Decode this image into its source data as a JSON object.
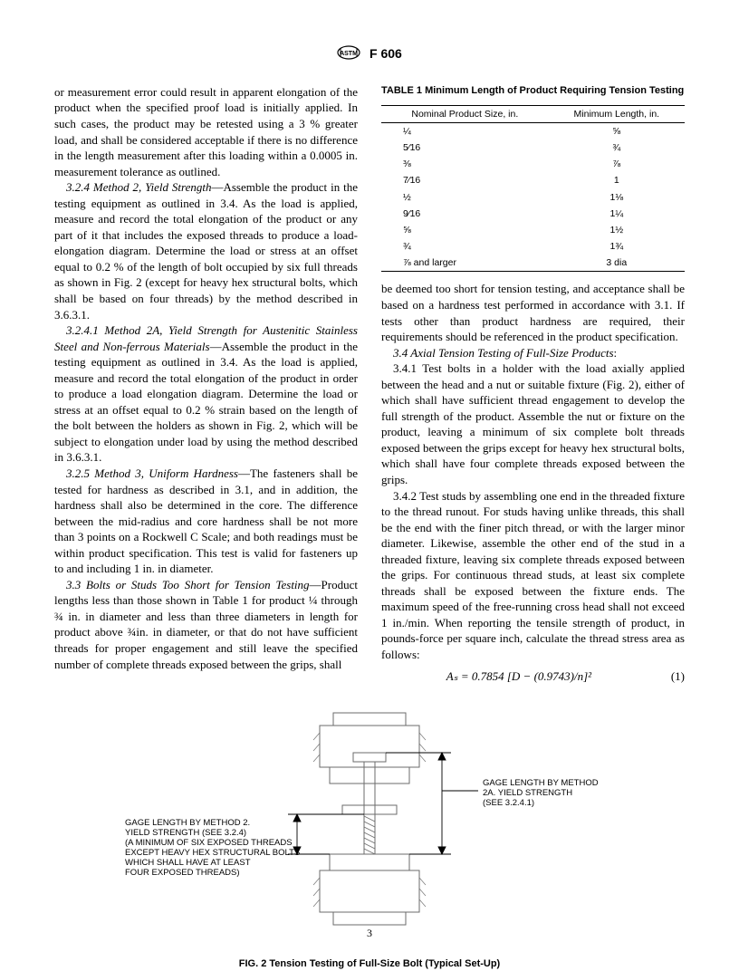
{
  "header": {
    "designation": "F 606"
  },
  "col1": {
    "p0": "or measurement error could result in apparent elongation of the product when the specified proof load is initially applied. In such cases, the product may be retested using a 3 % greater load, and shall be considered acceptable if there is no difference in the length measurement after this loading within a 0.0005 in. measurement tolerance as outlined.",
    "p1_lead": "3.2.4 Method 2, Yield Strength",
    "p1": "—Assemble the product in the testing equipment as outlined in 3.4. As the load is applied, measure and record the total elongation of the product or any part of it that includes the exposed threads to produce a load-elongation diagram. Determine the load or stress at an offset equal to 0.2 % of the length of bolt occupied by six full threads as shown in Fig. 2 (except for heavy hex structural bolts, which shall be based on four threads) by the method described in 3.6.3.1.",
    "p2_lead": "3.2.4.1 Method 2A, Yield Strength for Austenitic Stainless Steel and Non-ferrous Materials",
    "p2": "—Assemble the product in the testing equipment as outlined in 3.4. As the load is applied, measure and record the total elongation of the product in order to produce a load elongation diagram. Determine the load or stress at an offset equal to 0.2 % strain based on the length of the bolt between the holders as shown in Fig. 2, which will be subject to elongation under load by using the method described in 3.6.3.1.",
    "p3_lead": "3.2.5 Method 3, Uniform Hardness",
    "p3": "—The fasteners shall be tested for hardness as described in 3.1, and in addition, the hardness shall also be determined in the core. The difference between the mid-radius and core hardness shall be not more than 3 points on a Rockwell C Scale; and both readings must be within product specification. This test is valid for fasteners up to and including 1 in. in diameter.",
    "p4_lead": "3.3 Bolts or Studs Too Short for Tension Testing",
    "p4": "—Product lengths less than those shown in Table 1 for product ¼ through ¾ in. in diameter and less than three diameters in length for product above ¾in. in diameter, or that do not have sufficient threads for proper engagement and still leave the specified number of complete threads exposed between the grips, shall"
  },
  "table1": {
    "caption": "TABLE 1   Minimum Length of Product Requiring Tension Testing",
    "headers": [
      "Nominal Product Size, in.",
      "Minimum Length, in."
    ],
    "rows": [
      [
        "¼",
        "⅝"
      ],
      [
        "5⁄16",
        "¾"
      ],
      [
        "⅜",
        "⅞"
      ],
      [
        "7⁄16",
        "1"
      ],
      [
        "½",
        "1⅛"
      ],
      [
        "9⁄16",
        "1¼"
      ],
      [
        "⅝",
        "1½"
      ],
      [
        "¾",
        "1¾"
      ],
      [
        "⅞ and larger",
        "3 dia"
      ]
    ]
  },
  "col2": {
    "p0": "be deemed too short for tension testing, and acceptance shall be based on a hardness test performed in accordance with 3.1. If tests other than product hardness are required, their requirements should be referenced in the product specification.",
    "p1_lead": "3.4 Axial Tension Testing of Full-Size Products",
    "p1_tail": ":",
    "p2": "3.4.1 Test bolts in a holder with the load axially applied between the head and a nut or suitable fixture (Fig. 2), either of which shall have sufficient thread engagement to develop the full strength of the product. Assemble the nut or fixture on the product, leaving a minimum of six complete bolt threads exposed between the grips except for heavy hex structural bolts, which shall have four complete threads exposed between the grips.",
    "p3": "3.4.2 Test studs by assembling one end in the threaded fixture to the thread runout. For studs having unlike threads, this shall be the end with the finer pitch thread, or with the larger minor diameter. Likewise, assemble the other end of the stud in a threaded fixture, leaving six complete threads exposed between the grips. For continuous thread studs, at least six complete threads shall be exposed between the fixture ends. The maximum speed of the free-running cross head shall not exceed 1 in./min. When reporting the tensile strength of product, in pounds-force per square inch, calculate the thread stress area as follows:"
  },
  "equation": {
    "body": "Aₛ = 0.7854 [D − (0.9743)/n]²",
    "num": "(1)"
  },
  "figure": {
    "left_label": "GAGE LENGTH BY METHOD 2.\nYIELD STRENGTH (SEE 3.2.4)\n(A MINIMUM OF SIX EXPOSED THREADS\nEXCEPT HEAVY HEX STRUCTURAL BOLTS\nWHICH SHALL HAVE AT LEAST\nFOUR EXPOSED THREADS)",
    "right_label": "GAGE LENGTH BY METHOD\n2A. YIELD STRENGTH\n(SEE 3.2.4.1)",
    "caption": "FIG. 2 Tension Testing of Full-Size Bolt (Typical Set-Up)"
  },
  "pagenum": "3",
  "style": {
    "line_color": "#000000",
    "figure_line_color": "#6b6b6b",
    "thin": 0.8,
    "thick": 1.4
  }
}
